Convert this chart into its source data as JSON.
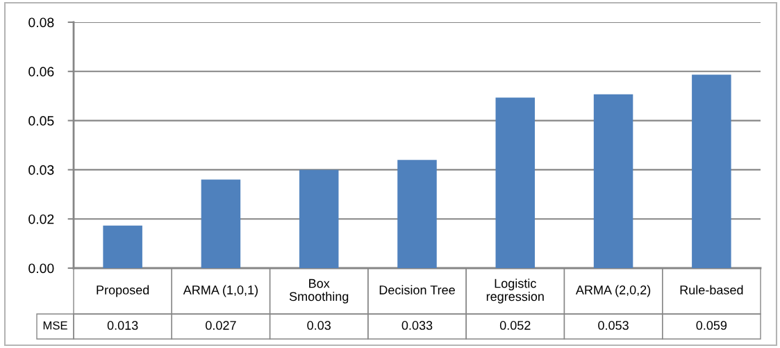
{
  "chart_data": {
    "type": "bar",
    "categories": [
      "Proposed",
      "ARMA (1,0,1)",
      "Box Smoothing",
      "Decision Tree",
      "Logistic regression",
      "ARMA (2,0,2)",
      "Rule-based"
    ],
    "series": [
      {
        "name": "MSE",
        "color": "#4f81bd",
        "values": [
          0.013,
          0.027,
          0.03,
          0.033,
          0.052,
          0.053,
          0.059
        ]
      }
    ],
    "ylim": [
      0,
      0.075
    ],
    "yticks": [
      {
        "value": 0,
        "label": "0.00"
      },
      {
        "value": 0.015,
        "label": "0.02"
      },
      {
        "value": 0.03,
        "label": "0.03"
      },
      {
        "value": 0.045,
        "label": "0.05"
      },
      {
        "value": 0.06,
        "label": "0.06"
      },
      {
        "value": 0.075,
        "label": "0.08"
      }
    ],
    "grid": "y",
    "data_labels": true
  }
}
